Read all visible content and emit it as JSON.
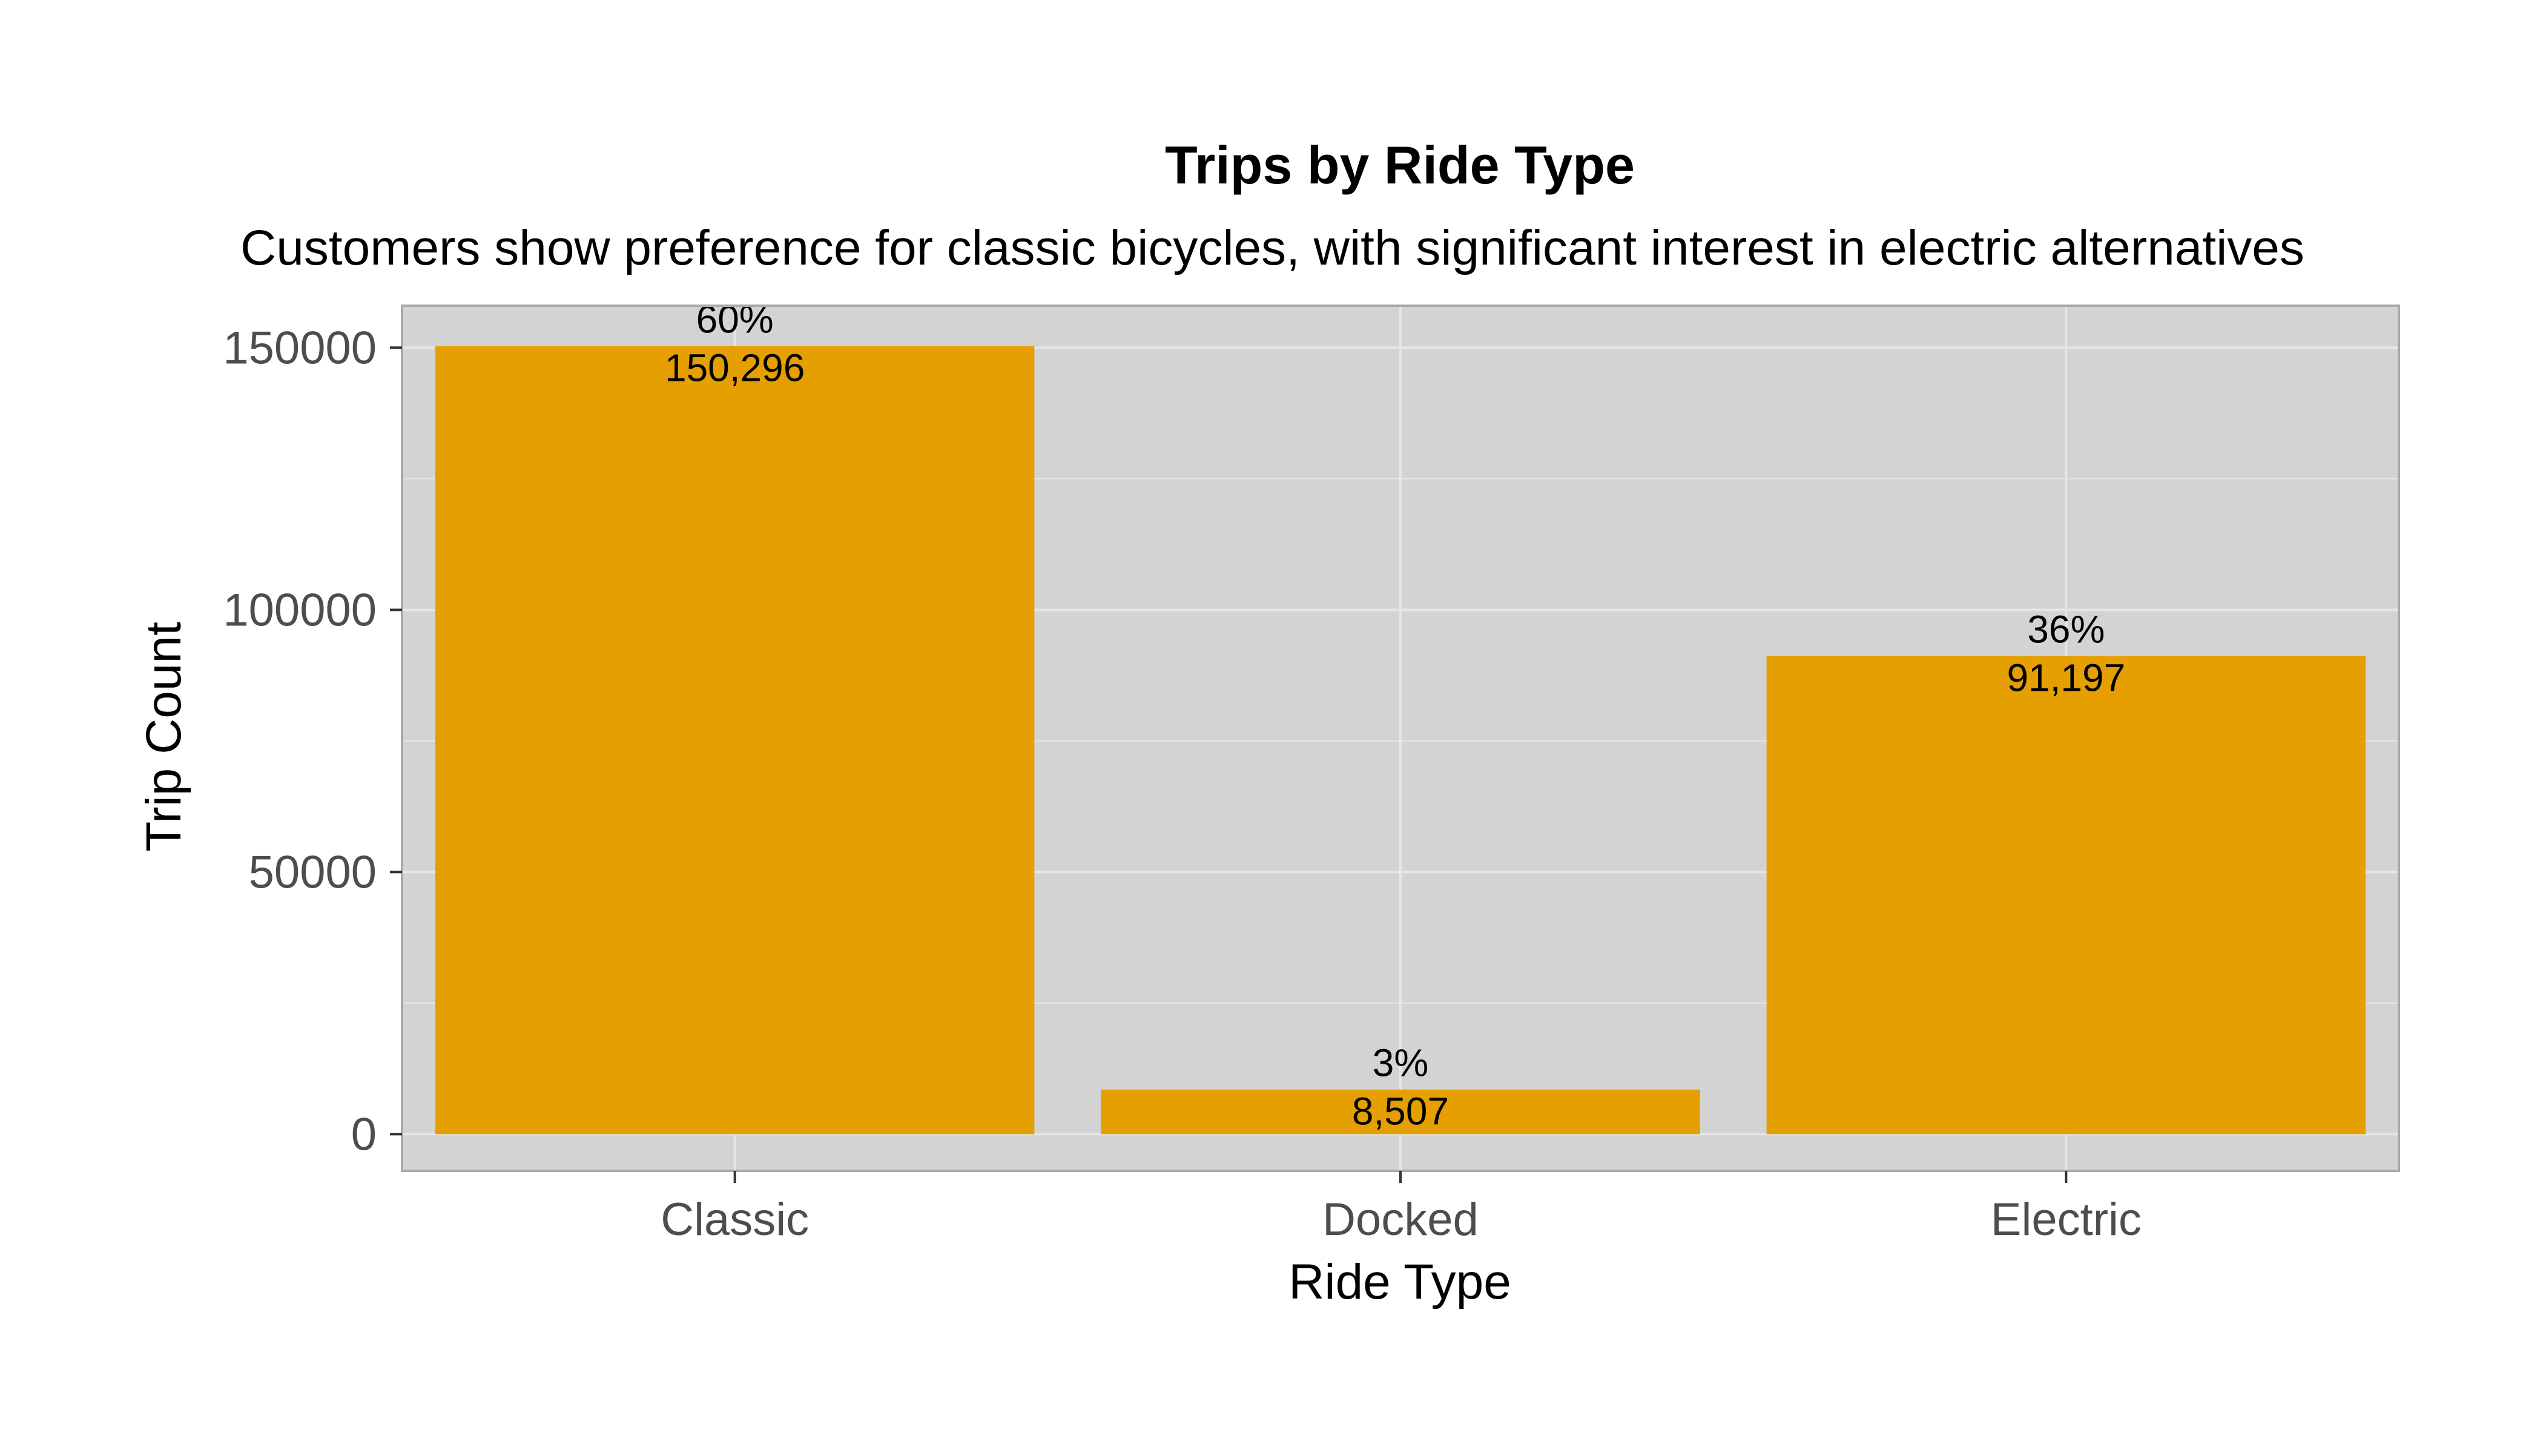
{
  "chart_data": {
    "type": "bar",
    "title": "Trips by Ride Type",
    "subtitle": "Customers show preference for classic bicycles, with significant interest in electric alternatives",
    "xlabel": "Ride Type",
    "ylabel": "Trip Count",
    "categories": [
      "Classic",
      "Docked",
      "Electric"
    ],
    "values": [
      150296,
      8507,
      91197
    ],
    "value_labels": [
      "150,296",
      "8,507",
      "91,197"
    ],
    "percent_labels": [
      "60%",
      "3%",
      "36%"
    ],
    "ylim": [
      -7000,
      158000
    ],
    "yticks": [
      0,
      50000,
      100000,
      150000
    ],
    "ytick_labels": [
      "0",
      "50000",
      "100000",
      "150000"
    ],
    "grid": true,
    "legend": "none",
    "colors": {
      "bar": "#E69F00",
      "panel_background": "#D3D3D3",
      "grid": "#E6E6E6",
      "panel_border": "#A9A9A9",
      "tick_text": "#4D4D4D"
    }
  }
}
